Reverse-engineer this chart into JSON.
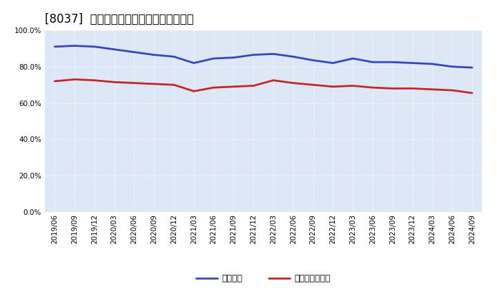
{
  "title": "[8037]  固定比率、固定長期適合率の推移",
  "x_labels": [
    "2019/06",
    "2019/09",
    "2019/12",
    "2020/03",
    "2020/06",
    "2020/09",
    "2020/12",
    "2021/03",
    "2021/06",
    "2021/09",
    "2021/12",
    "2022/03",
    "2022/06",
    "2022/09",
    "2022/12",
    "2023/03",
    "2023/06",
    "2023/09",
    "2023/12",
    "2024/03",
    "2024/06",
    "2024/09"
  ],
  "fixed_ratio": [
    91.0,
    91.5,
    91.0,
    89.5,
    88.0,
    86.5,
    85.5,
    82.0,
    84.5,
    85.0,
    86.5,
    87.0,
    85.5,
    83.5,
    82.0,
    84.5,
    82.5,
    82.5,
    82.0,
    81.5,
    80.0,
    79.5
  ],
  "fixed_long_ratio": [
    72.0,
    73.0,
    72.5,
    71.5,
    71.0,
    70.5,
    70.0,
    66.5,
    68.5,
    69.0,
    69.5,
    72.5,
    71.0,
    70.0,
    69.0,
    69.5,
    68.5,
    68.0,
    68.0,
    67.5,
    67.0,
    65.5
  ],
  "line_color_blue": "#3344cc",
  "line_color_red": "#cc2222",
  "bg_color": "#ffffff",
  "plot_bg_color": "#dce8f5",
  "grid_color": "#ffffff",
  "ylim": [
    0,
    100
  ],
  "legend_blue": "固定比率",
  "legend_red": "固定長期適合率",
  "title_fontsize": 12,
  "tick_fontsize": 7.5,
  "legend_fontsize": 9,
  "line_width": 2.0
}
